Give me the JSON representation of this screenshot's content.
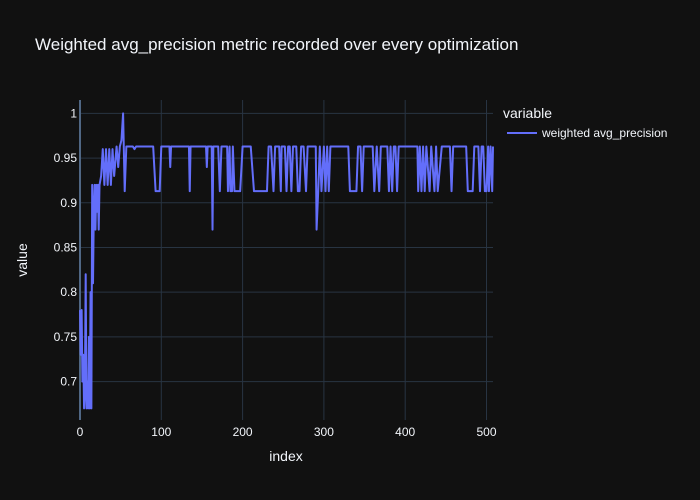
{
  "chart_data": {
    "type": "line",
    "title": "Weighted avg_precision metric recorded over every optimization",
    "xlabel": "index",
    "ylabel": "value",
    "xlim": [
      0,
      508
    ],
    "ylim": [
      0.657,
      1.015
    ],
    "x_ticks": [
      0,
      100,
      200,
      300,
      400,
      500
    ],
    "x_tick_labels": [
      "0",
      "100",
      "200",
      "300",
      "400",
      "500"
    ],
    "y_ticks": [
      0.7,
      0.75,
      0.8,
      0.85,
      0.9,
      0.95,
      1
    ],
    "y_tick_labels": [
      "0.7",
      "0.75",
      "0.8",
      "0.85",
      "0.9",
      "0.95",
      "1"
    ],
    "grid": true,
    "legend": {
      "title": "variable",
      "position": "top-right"
    },
    "colors": {
      "background": "#111111",
      "grid": "#283442",
      "series": "#636efa",
      "text": "#f2f5fa"
    },
    "series": [
      {
        "name": "weighted avg_precision",
        "points": [
          [
            0,
            0.78
          ],
          [
            1,
            0.73
          ],
          [
            2,
            0.78
          ],
          [
            3,
            0.7
          ],
          [
            4,
            0.73
          ],
          [
            5,
            0.67
          ],
          [
            6,
            0.69
          ],
          [
            7,
            0.82
          ],
          [
            8,
            0.67
          ],
          [
            9,
            0.7
          ],
          [
            10,
            0.67
          ],
          [
            11,
            0.75
          ],
          [
            12,
            0.67
          ],
          [
            13,
            0.8
          ],
          [
            14,
            0.67
          ],
          [
            15,
            0.92
          ],
          [
            16,
            0.81
          ],
          [
            17,
            0.89
          ],
          [
            18,
            0.92
          ],
          [
            19,
            0.87
          ],
          [
            20,
            0.92
          ],
          [
            21,
            0.89
          ],
          [
            22,
            0.92
          ],
          [
            23,
            0.87
          ],
          [
            24,
            0.92
          ],
          [
            26,
            0.93
          ],
          [
            28,
            0.96
          ],
          [
            30,
            0.92
          ],
          [
            32,
            0.96
          ],
          [
            34,
            0.92
          ],
          [
            36,
            0.96
          ],
          [
            38,
            0.92
          ],
          [
            40,
            0.96
          ],
          [
            42,
            0.93
          ],
          [
            45,
            0.963
          ],
          [
            47,
            0.94
          ],
          [
            49,
            0.963
          ],
          [
            51,
            0.97
          ],
          [
            53,
            1.0
          ],
          [
            55,
            0.913
          ],
          [
            57,
            0.963
          ],
          [
            65,
            0.963
          ],
          [
            67,
            0.96
          ],
          [
            69,
            0.963
          ],
          [
            75,
            0.963
          ],
          [
            85,
            0.963
          ],
          [
            90,
            0.963
          ],
          [
            93,
            0.913
          ],
          [
            95,
            0.913
          ],
          [
            98,
            0.913
          ],
          [
            100,
            0.963
          ],
          [
            105,
            0.963
          ],
          [
            110,
            0.963
          ],
          [
            111,
            0.94
          ],
          [
            112,
            0.963
          ],
          [
            130,
            0.963
          ],
          [
            134,
            0.963
          ],
          [
            135,
            0.913
          ],
          [
            136,
            0.963
          ],
          [
            155,
            0.963
          ],
          [
            156,
            0.94
          ],
          [
            157,
            0.963
          ],
          [
            162,
            0.963
          ],
          [
            163,
            0.87
          ],
          [
            164,
            0.963
          ],
          [
            170,
            0.963
          ],
          [
            172,
            0.913
          ],
          [
            174,
            0.963
          ],
          [
            181,
            0.963
          ],
          [
            182,
            0.913
          ],
          [
            184,
            0.963
          ],
          [
            185,
            0.913
          ],
          [
            187,
            0.913
          ],
          [
            188,
            0.963
          ],
          [
            190,
            0.913
          ],
          [
            197,
            0.913
          ],
          [
            200,
            0.963
          ],
          [
            210,
            0.963
          ],
          [
            214,
            0.913
          ],
          [
            230,
            0.913
          ],
          [
            232,
            0.963
          ],
          [
            235,
            0.963
          ],
          [
            238,
            0.913
          ],
          [
            240,
            0.963
          ],
          [
            245,
            0.963
          ],
          [
            247,
            0.913
          ],
          [
            248,
            0.963
          ],
          [
            252,
            0.963
          ],
          [
            254,
            0.913
          ],
          [
            256,
            0.963
          ],
          [
            258,
            0.963
          ],
          [
            260,
            0.913
          ],
          [
            262,
            0.963
          ],
          [
            266,
            0.963
          ],
          [
            268,
            0.913
          ],
          [
            270,
            0.913
          ],
          [
            272,
            0.963
          ],
          [
            275,
            0.963
          ],
          [
            278,
            0.913
          ],
          [
            280,
            0.963
          ],
          [
            290,
            0.963
          ],
          [
            291,
            0.87
          ],
          [
            293,
            0.913
          ],
          [
            295,
            0.963
          ],
          [
            297,
            0.913
          ],
          [
            300,
            0.963
          ],
          [
            302,
            0.913
          ],
          [
            304,
            0.963
          ],
          [
            306,
            0.913
          ],
          [
            308,
            0.963
          ],
          [
            330,
            0.963
          ],
          [
            332,
            0.913
          ],
          [
            340,
            0.913
          ],
          [
            342,
            0.963
          ],
          [
            345,
            0.963
          ],
          [
            347,
            0.913
          ],
          [
            349,
            0.963
          ],
          [
            360,
            0.963
          ],
          [
            362,
            0.913
          ],
          [
            365,
            0.963
          ],
          [
            368,
            0.913
          ],
          [
            370,
            0.963
          ],
          [
            378,
            0.963
          ],
          [
            380,
            0.913
          ],
          [
            382,
            0.963
          ],
          [
            384,
            0.913
          ],
          [
            386,
            0.963
          ],
          [
            388,
            0.963
          ],
          [
            390,
            0.913
          ],
          [
            392,
            0.963
          ],
          [
            397,
            0.963
          ],
          [
            400,
            0.963
          ],
          [
            405,
            0.963
          ],
          [
            410,
            0.963
          ],
          [
            415,
            0.963
          ],
          [
            416,
            0.913
          ],
          [
            418,
            0.963
          ],
          [
            420,
            0.913
          ],
          [
            422,
            0.963
          ],
          [
            424,
            0.913
          ],
          [
            426,
            0.963
          ],
          [
            430,
            0.913
          ],
          [
            432,
            0.963
          ],
          [
            436,
            0.913
          ],
          [
            438,
            0.963
          ],
          [
            440,
            0.913
          ],
          [
            445,
            0.963
          ],
          [
            455,
            0.963
          ],
          [
            457,
            0.913
          ],
          [
            459,
            0.963
          ],
          [
            475,
            0.963
          ],
          [
            477,
            0.913
          ],
          [
            483,
            0.913
          ],
          [
            485,
            0.963
          ],
          [
            490,
            0.963
          ],
          [
            492,
            0.913
          ],
          [
            494,
            0.963
          ],
          [
            496,
            0.963
          ],
          [
            498,
            0.913
          ],
          [
            500,
            0.913
          ],
          [
            502,
            0.963
          ],
          [
            503,
            0.913
          ],
          [
            505,
            0.963
          ],
          [
            507,
            0.913
          ],
          [
            508,
            0.963
          ]
        ]
      }
    ]
  }
}
